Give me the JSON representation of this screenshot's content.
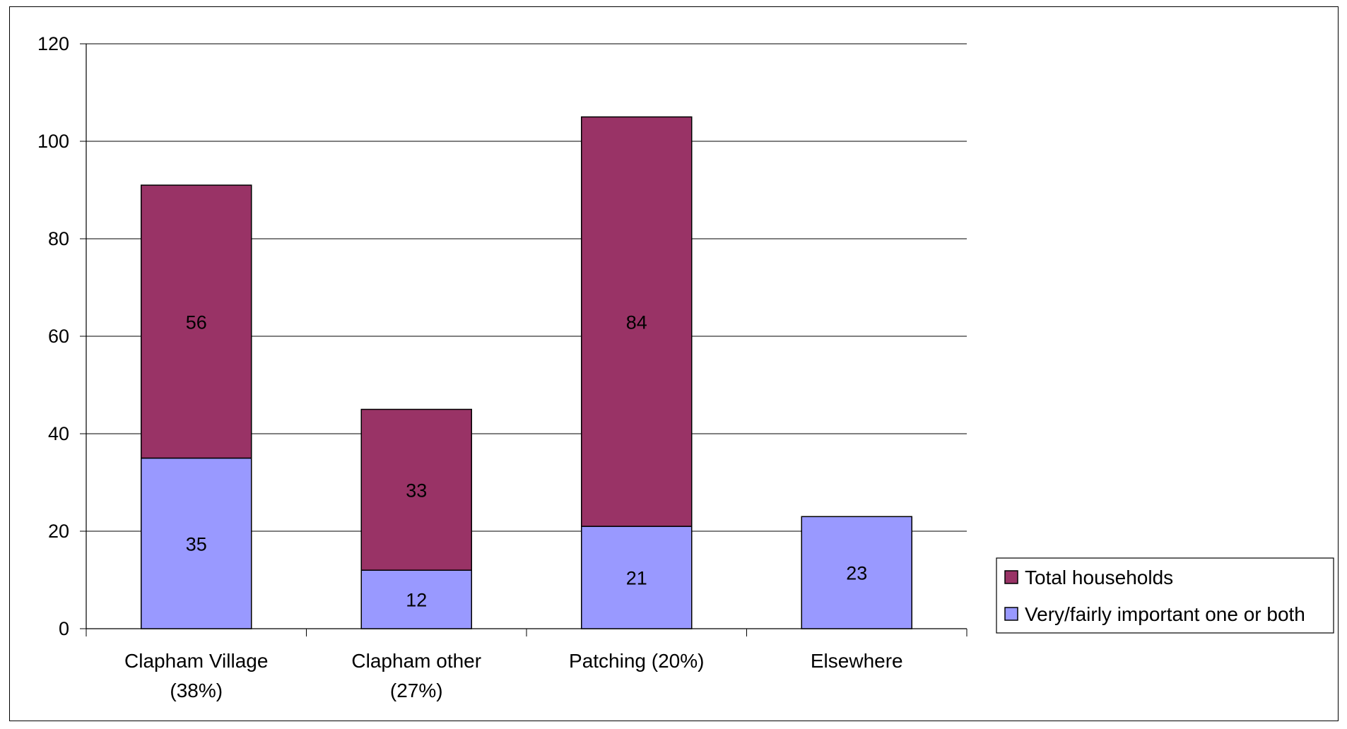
{
  "chart_data": {
    "type": "bar",
    "stacked": true,
    "title": "",
    "xlabel": "",
    "ylabel": "",
    "categories": [
      [
        "Clapham Village",
        "(38%)"
      ],
      [
        "Clapham other",
        "(27%)"
      ],
      [
        "Patching (20%)"
      ],
      [
        "Elsewhere"
      ]
    ],
    "ylim": [
      0,
      120
    ],
    "yticks": [
      0,
      20,
      40,
      60,
      80,
      100,
      120
    ],
    "grid": true,
    "legend_position": "right",
    "series": [
      {
        "name": "Very/fairly important one or both",
        "color": "#9999ff",
        "values": [
          35,
          12,
          21,
          23
        ]
      },
      {
        "name": "Total households",
        "color": "#993366",
        "values": [
          56,
          33,
          84,
          null
        ]
      }
    ],
    "legend_order": [
      1,
      0
    ]
  }
}
